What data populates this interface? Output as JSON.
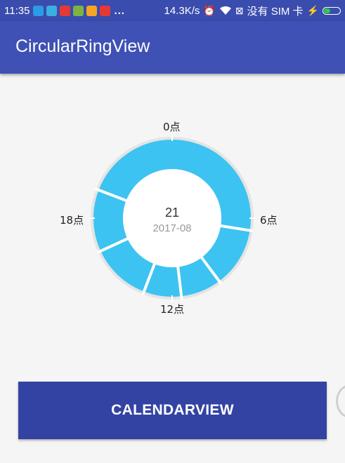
{
  "status_bar": {
    "time": "11:35",
    "network_speed": "14.3K/s",
    "sim_text": "没有 SIM 卡",
    "dots": "...",
    "notification_icons": [
      {
        "icon": "usb-icon",
        "color": "#2d9be8"
      },
      {
        "icon": "app-icon",
        "color": "#3ab0e0"
      },
      {
        "icon": "app-icon",
        "color": "#e53935"
      },
      {
        "icon": "app-icon",
        "color": "#7cb342"
      },
      {
        "icon": "weibo-icon",
        "color": "#f5a623"
      },
      {
        "icon": "app-icon",
        "color": "#e53935"
      }
    ],
    "battery_color": "#2ecc40"
  },
  "app_bar": {
    "title": "CircularRingView",
    "color": "#3f51b5"
  },
  "ring": {
    "segment_color": "#3cc3f2",
    "track_color": "#e4e4e4",
    "labels": {
      "top": "0点",
      "right": "6点",
      "bottom": "12点",
      "left": "18点"
    },
    "center_day": "21",
    "center_month": "2017-08",
    "segments_hours": [
      {
        "start": 0,
        "end": 6.6
      },
      {
        "start": 6.6,
        "end": 9.55
      },
      {
        "start": 9.55,
        "end": 11.55
      },
      {
        "start": 11.55,
        "end": 13.4
      },
      {
        "start": 13.4,
        "end": 16.35
      },
      {
        "start": 16.35,
        "end": 19.4
      },
      {
        "start": 19.4,
        "end": 24
      }
    ]
  },
  "button": {
    "label": "CALENDARVIEW",
    "color": "#3343a3"
  }
}
